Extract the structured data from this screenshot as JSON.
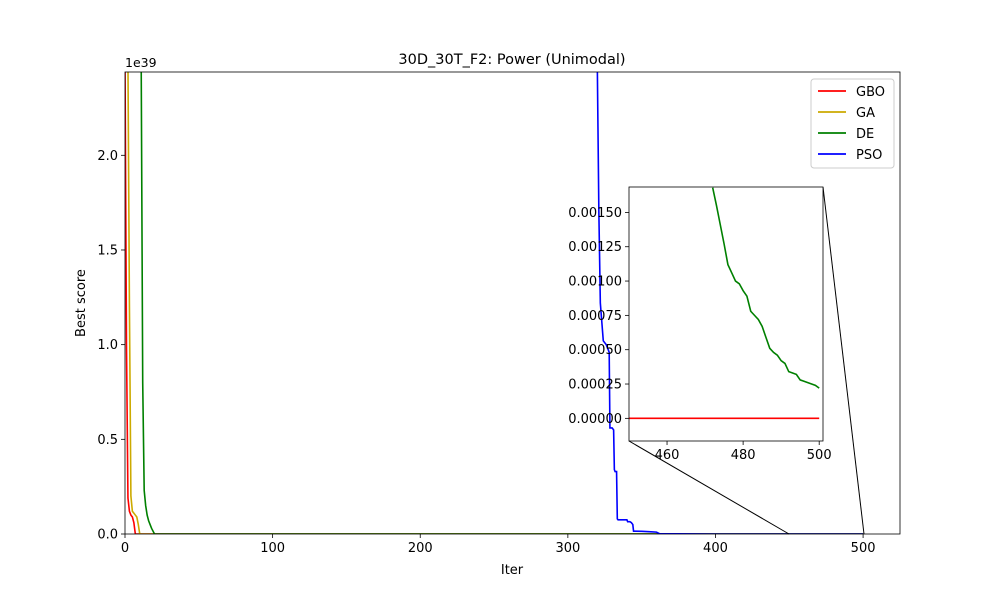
{
  "chart_data": [
    {
      "type": "line",
      "title": "30D_30T_F2: Power (Unimodal)",
      "xlabel": "Iter",
      "ylabel": "Best score",
      "y_offset_text": "1e39",
      "y_scale": 1e+39,
      "xlim": [
        0,
        525
      ],
      "ylim": [
        0,
        2.44
      ],
      "x_ticks": [
        0,
        100,
        200,
        300,
        400,
        500
      ],
      "x_tick_labels": [
        "0",
        "100",
        "200",
        "300",
        "400",
        "500"
      ],
      "y_ticks": [
        0,
        0.5,
        1.0,
        1.5,
        2.0
      ],
      "y_tick_labels": [
        "0.0",
        "0.5",
        "1.0",
        "1.5",
        "2.0"
      ],
      "legend_position": "top-right",
      "colors": {
        "GBO": "#ff0000",
        "GA": "#ccaa00",
        "DE": "#008000",
        "PSO": "#0000ff"
      },
      "series": [
        {
          "name": "GBO",
          "color": "#ff0000",
          "x": [
            0,
            1,
            2,
            3,
            4,
            5,
            6,
            7,
            8,
            500
          ],
          "y": [
            2.5,
            1.0,
            0.19,
            0.12,
            0.1,
            0.09,
            0.06,
            0.0,
            0.0,
            0.0
          ]
        },
        {
          "name": "GA",
          "color": "#ccaa00",
          "x": [
            0,
            1,
            2,
            3,
            4,
            5,
            6,
            7,
            8,
            9,
            10,
            500
          ],
          "y": [
            2.5,
            2.5,
            2.5,
            1.2,
            0.2,
            0.12,
            0.11,
            0.1,
            0.09,
            0.05,
            0.0,
            0.0
          ]
        },
        {
          "name": "DE",
          "color": "#008000",
          "x": [
            0,
            10,
            11,
            12,
            13,
            14,
            15,
            16,
            17,
            18,
            20,
            500
          ],
          "y": [
            2.5,
            2.5,
            2.44,
            0.8,
            0.23,
            0.15,
            0.1,
            0.07,
            0.05,
            0.03,
            0.0,
            0.0
          ]
        },
        {
          "name": "PSO",
          "color": "#0000ff",
          "x": [
            320,
            321,
            322,
            324,
            326,
            327,
            328,
            328.5,
            330,
            331,
            331.5,
            332,
            333,
            333.5,
            334,
            340,
            340.5,
            342,
            343,
            344,
            344.5,
            350,
            355,
            360,
            362,
            400,
            500
          ],
          "y": [
            2.44,
            1.7,
            1.22,
            1.02,
            1.0,
            0.98,
            0.96,
            0.56,
            0.56,
            0.55,
            0.34,
            0.33,
            0.33,
            0.08,
            0.075,
            0.075,
            0.065,
            0.065,
            0.06,
            0.05,
            0.015,
            0.014,
            0.012,
            0.01,
            0.002,
            0.0,
            0.0
          ]
        }
      ]
    },
    {
      "type": "line",
      "title": "",
      "xlim": [
        450,
        501
      ],
      "ylim": [
        -0.000165,
        0.001685
      ],
      "x_ticks": [
        460,
        480,
        500
      ],
      "x_tick_labels": [
        "460",
        "480",
        "500"
      ],
      "y_ticks": [
        0,
        0.00025,
        0.0005,
        0.00075,
        0.001,
        0.00125,
        0.0015
      ],
      "y_tick_labels": [
        "0.00000",
        "0.00025",
        "0.00050",
        "0.00075",
        "0.00100",
        "0.00125",
        "0.00150"
      ],
      "series": [
        {
          "name": "GBO",
          "color": "#ff0000",
          "x": [
            450,
            500
          ],
          "y": [
            0.0,
            0.0
          ]
        },
        {
          "name": "DE",
          "color": "#008000",
          "x": [
            472,
            473,
            474,
            475,
            476,
            477,
            478,
            479,
            480,
            481,
            482,
            483,
            484,
            485,
            486,
            487,
            488,
            489,
            490,
            491,
            492,
            493,
            494,
            495,
            496,
            497,
            498,
            499,
            500
          ],
          "y": [
            0.00168,
            0.00155,
            0.00141,
            0.00127,
            0.00112,
            0.00106,
            0.001,
            0.00098,
            0.00093,
            0.00089,
            0.00078,
            0.00075,
            0.00072,
            0.00067,
            0.00059,
            0.00051,
            0.00048,
            0.00046,
            0.00042,
            0.0004,
            0.00034,
            0.00033,
            0.00032,
            0.00028,
            0.00027,
            0.00026,
            0.00025,
            0.00024,
            0.00022
          ]
        }
      ]
    }
  ]
}
